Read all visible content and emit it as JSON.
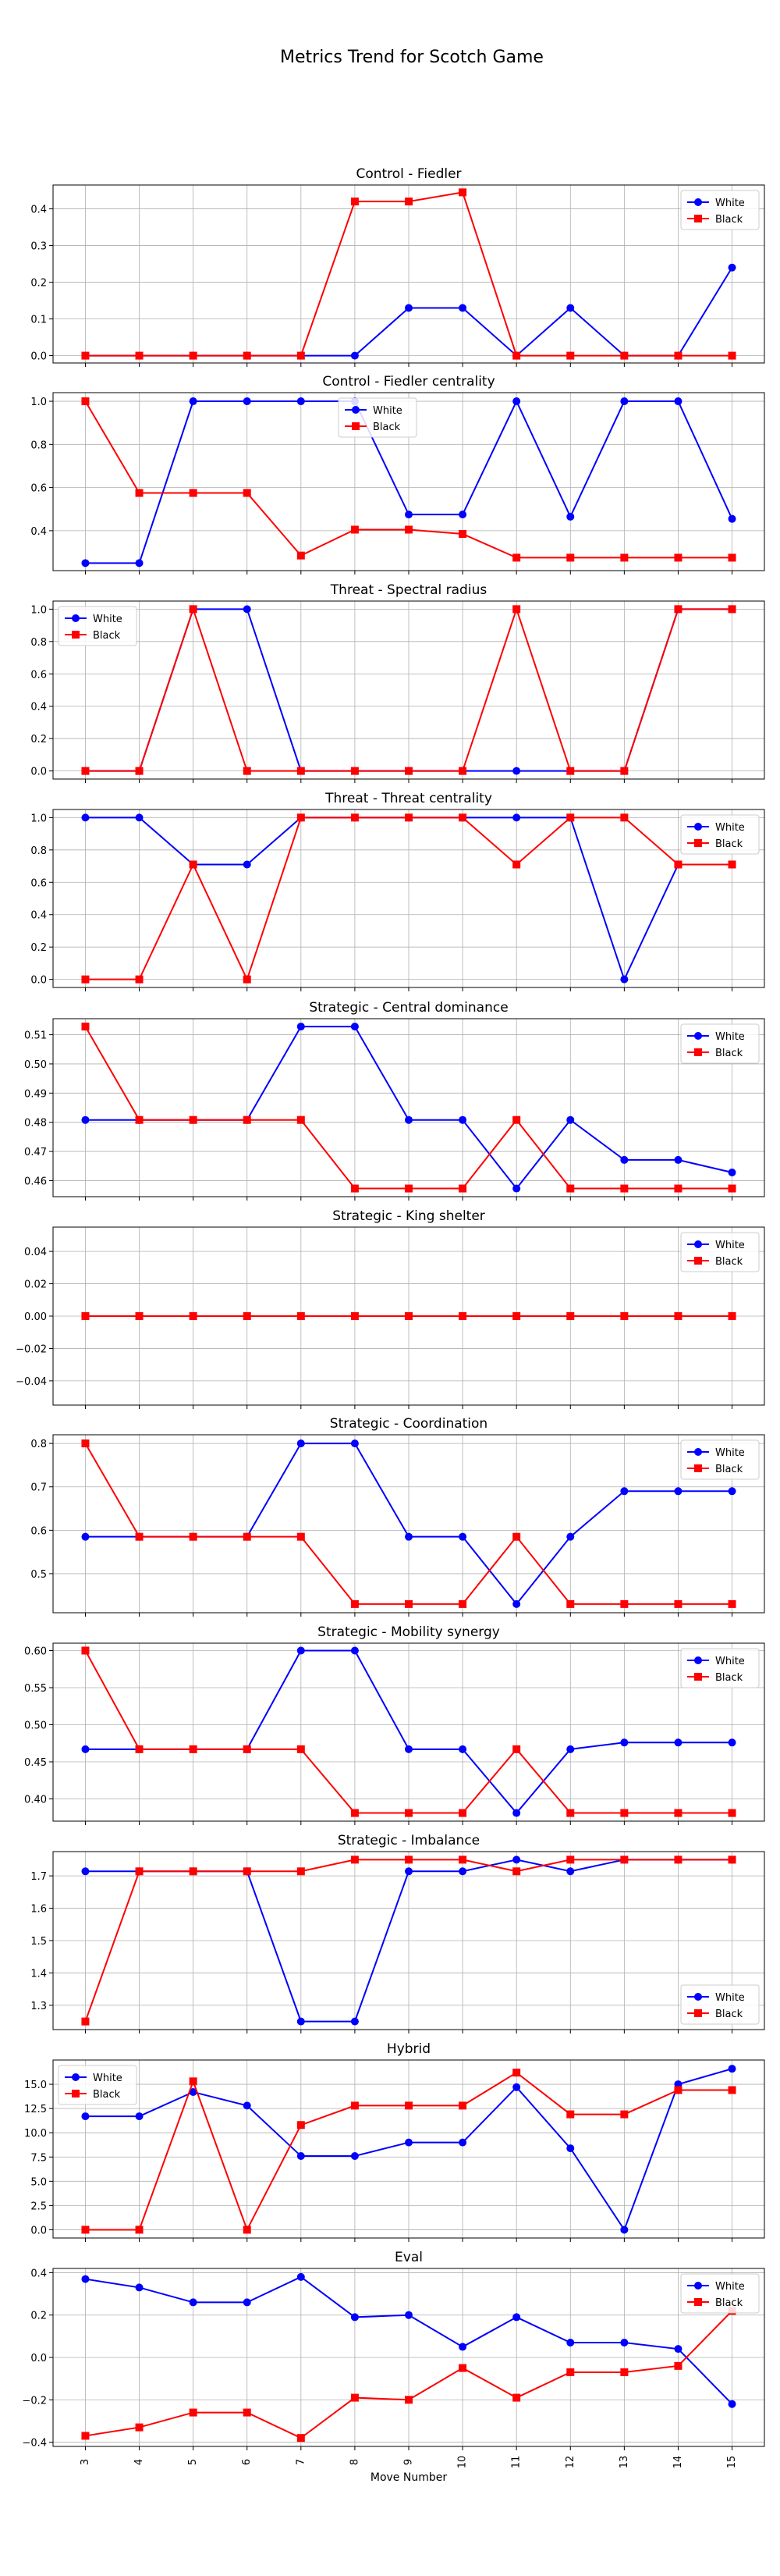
{
  "suptitle": "Metrics Trend for Scotch Game",
  "xlabel": "Move Number",
  "colors": {
    "white_series": "#0000ff",
    "black_series": "#ff0000"
  },
  "chart_data": [
    {
      "type": "line",
      "title": "Control - Fiedler",
      "x": [
        3,
        4,
        5,
        6,
        7,
        8,
        9,
        10,
        11,
        12,
        13,
        14,
        15
      ],
      "ylim": [
        -0.02,
        0.465
      ],
      "yticks": [
        0.0,
        0.1,
        0.2,
        0.3,
        0.4
      ],
      "ytick_labels": [
        "0.0",
        "0.1",
        "0.2",
        "0.3",
        "0.4"
      ],
      "legend": "upper-right",
      "grid": true,
      "series": [
        {
          "name": "White",
          "marker": "circle",
          "values": [
            0,
            0,
            0,
            0,
            0,
            0,
            0.13,
            0.13,
            0,
            0.13,
            0,
            0,
            0.24
          ]
        },
        {
          "name": "Black",
          "marker": "square",
          "values": [
            0,
            0,
            0,
            0,
            0,
            0.42,
            0.42,
            0.445,
            0,
            0,
            0,
            0,
            0
          ]
        }
      ]
    },
    {
      "type": "line",
      "title": "Control - Fiedler centrality",
      "x": [
        3,
        4,
        5,
        6,
        7,
        8,
        9,
        10,
        11,
        12,
        13,
        14,
        15
      ],
      "ylim": [
        0.215,
        1.04
      ],
      "yticks": [
        0.4,
        0.6,
        0.8,
        1.0
      ],
      "ytick_labels": [
        "0.4",
        "0.6",
        "0.8",
        "1.0"
      ],
      "legend": "upper-center",
      "grid": true,
      "series": [
        {
          "name": "White",
          "marker": "circle",
          "values": [
            0.25,
            0.25,
            1.0,
            1.0,
            1.0,
            1.0,
            0.475,
            0.475,
            1.0,
            0.465,
            1.0,
            1.0,
            0.455
          ]
        },
        {
          "name": "Black",
          "marker": "square",
          "values": [
            1.0,
            0.575,
            0.575,
            0.575,
            0.285,
            0.405,
            0.405,
            0.385,
            0.275,
            0.275,
            0.275,
            0.275,
            0.275
          ]
        }
      ]
    },
    {
      "type": "line",
      "title": "Threat - Spectral radius",
      "x": [
        3,
        4,
        5,
        6,
        7,
        8,
        9,
        10,
        11,
        12,
        13,
        14,
        15
      ],
      "ylim": [
        -0.05,
        1.05
      ],
      "yticks": [
        0.0,
        0.2,
        0.4,
        0.6,
        0.8,
        1.0
      ],
      "ytick_labels": [
        "0.0",
        "0.2",
        "0.4",
        "0.6",
        "0.8",
        "1.0"
      ],
      "legend": "upper-left",
      "grid": true,
      "series": [
        {
          "name": "White",
          "marker": "circle",
          "values": [
            0,
            0,
            1.0,
            1.0,
            0,
            0,
            0,
            0,
            0,
            0,
            0,
            1.0,
            1.0
          ]
        },
        {
          "name": "Black",
          "marker": "square",
          "values": [
            0,
            0,
            1.0,
            0,
            0,
            0,
            0,
            0,
            1.0,
            0,
            0,
            1.0,
            1.0
          ]
        }
      ]
    },
    {
      "type": "line",
      "title": "Threat - Threat centrality",
      "x": [
        3,
        4,
        5,
        6,
        7,
        8,
        9,
        10,
        11,
        12,
        13,
        14,
        15
      ],
      "ylim": [
        -0.05,
        1.05
      ],
      "yticks": [
        0.0,
        0.2,
        0.4,
        0.6,
        0.8,
        1.0
      ],
      "ytick_labels": [
        "0.0",
        "0.2",
        "0.4",
        "0.6",
        "0.8",
        "1.0"
      ],
      "legend": "upper-right",
      "grid": true,
      "series": [
        {
          "name": "White",
          "marker": "circle",
          "values": [
            1.0,
            1.0,
            0.71,
            0.71,
            1.0,
            1.0,
            1.0,
            1.0,
            1.0,
            1.0,
            0,
            0.71,
            0.71
          ]
        },
        {
          "name": "Black",
          "marker": "square",
          "values": [
            0,
            0,
            0.71,
            0,
            1.0,
            1.0,
            1.0,
            1.0,
            0.71,
            1.0,
            1.0,
            0.71,
            0.71
          ]
        }
      ]
    },
    {
      "type": "line",
      "title": "Strategic - Central dominance",
      "x": [
        3,
        4,
        5,
        6,
        7,
        8,
        9,
        10,
        11,
        12,
        13,
        14,
        15
      ],
      "ylim": [
        0.4545,
        0.5155
      ],
      "yticks": [
        0.46,
        0.47,
        0.48,
        0.49,
        0.5,
        0.51
      ],
      "ytick_labels": [
        "0.46",
        "0.47",
        "0.48",
        "0.49",
        "0.50",
        "0.51"
      ],
      "legend": "upper-right",
      "grid": true,
      "series": [
        {
          "name": "White",
          "marker": "circle",
          "values": [
            0.4808,
            0.4808,
            0.4808,
            0.4808,
            0.5128,
            0.5128,
            0.4808,
            0.4808,
            0.4573,
            0.4808,
            0.4671,
            0.4671,
            0.4628
          ]
        },
        {
          "name": "Black",
          "marker": "square",
          "values": [
            0.5128,
            0.4808,
            0.4808,
            0.4808,
            0.4808,
            0.4573,
            0.4573,
            0.4573,
            0.4808,
            0.4573,
            0.4573,
            0.4573,
            0.4573
          ]
        }
      ]
    },
    {
      "type": "line",
      "title": "Strategic - King shelter",
      "x": [
        3,
        4,
        5,
        6,
        7,
        8,
        9,
        10,
        11,
        12,
        13,
        14,
        15
      ],
      "ylim": [
        -0.055,
        0.055
      ],
      "yticks": [
        -0.04,
        -0.02,
        0.0,
        0.02,
        0.04
      ],
      "ytick_labels": [
        "−0.04",
        "−0.02",
        "0.00",
        "0.02",
        "0.04"
      ],
      "legend": "upper-right",
      "grid": true,
      "series": [
        {
          "name": "White",
          "marker": "circle",
          "values": [
            0,
            0,
            0,
            0,
            0,
            0,
            0,
            0,
            0,
            0,
            0,
            0,
            0
          ]
        },
        {
          "name": "Black",
          "marker": "square",
          "values": [
            0,
            0,
            0,
            0,
            0,
            0,
            0,
            0,
            0,
            0,
            0,
            0,
            0
          ]
        }
      ]
    },
    {
      "type": "line",
      "title": "Strategic - Coordination",
      "x": [
        3,
        4,
        5,
        6,
        7,
        8,
        9,
        10,
        11,
        12,
        13,
        14,
        15
      ],
      "ylim": [
        0.41,
        0.82
      ],
      "yticks": [
        0.5,
        0.6,
        0.7,
        0.8
      ],
      "ytick_labels": [
        "0.5",
        "0.6",
        "0.7",
        "0.8"
      ],
      "legend": "upper-right",
      "grid": true,
      "series": [
        {
          "name": "White",
          "marker": "circle",
          "values": [
            0.585,
            0.585,
            0.585,
            0.585,
            0.8,
            0.8,
            0.585,
            0.585,
            0.43,
            0.585,
            0.69,
            0.69,
            0.69
          ]
        },
        {
          "name": "Black",
          "marker": "square",
          "values": [
            0.8,
            0.585,
            0.585,
            0.585,
            0.585,
            0.43,
            0.43,
            0.43,
            0.585,
            0.43,
            0.43,
            0.43,
            0.43
          ]
        }
      ]
    },
    {
      "type": "line",
      "title": "Strategic - Mobility synergy",
      "x": [
        3,
        4,
        5,
        6,
        7,
        8,
        9,
        10,
        11,
        12,
        13,
        14,
        15
      ],
      "ylim": [
        0.37,
        0.61
      ],
      "yticks": [
        0.4,
        0.45,
        0.5,
        0.55,
        0.6
      ],
      "ytick_labels": [
        "0.40",
        "0.45",
        "0.50",
        "0.55",
        "0.60"
      ],
      "legend": "upper-right",
      "grid": true,
      "series": [
        {
          "name": "White",
          "marker": "circle",
          "values": [
            0.467,
            0.467,
            0.467,
            0.467,
            0.6,
            0.6,
            0.467,
            0.467,
            0.381,
            0.467,
            0.476,
            0.476,
            0.476
          ]
        },
        {
          "name": "Black",
          "marker": "square",
          "values": [
            0.6,
            0.467,
            0.467,
            0.467,
            0.467,
            0.381,
            0.381,
            0.381,
            0.467,
            0.381,
            0.381,
            0.381,
            0.381
          ]
        }
      ]
    },
    {
      "type": "line",
      "title": "Strategic - Imbalance",
      "x": [
        3,
        4,
        5,
        6,
        7,
        8,
        9,
        10,
        11,
        12,
        13,
        14,
        15
      ],
      "ylim": [
        1.225,
        1.775
      ],
      "yticks": [
        1.3,
        1.4,
        1.5,
        1.6,
        1.7
      ],
      "ytick_labels": [
        "1.3",
        "1.4",
        "1.5",
        "1.6",
        "1.7"
      ],
      "legend": "lower-right",
      "grid": true,
      "series": [
        {
          "name": "White",
          "marker": "circle",
          "values": [
            1.714,
            1.714,
            1.714,
            1.714,
            1.25,
            1.25,
            1.714,
            1.714,
            1.75,
            1.714,
            1.75,
            1.75,
            1.75
          ]
        },
        {
          "name": "Black",
          "marker": "square",
          "values": [
            1.25,
            1.714,
            1.714,
            1.714,
            1.714,
            1.75,
            1.75,
            1.75,
            1.714,
            1.75,
            1.75,
            1.75,
            1.75
          ]
        }
      ]
    },
    {
      "type": "line",
      "title": "Hybrid",
      "x": [
        3,
        4,
        5,
        6,
        7,
        8,
        9,
        10,
        11,
        12,
        13,
        14,
        15
      ],
      "ylim": [
        -0.85,
        17.5
      ],
      "yticks": [
        0.0,
        2.5,
        5.0,
        7.5,
        10.0,
        12.5,
        15.0
      ],
      "ytick_labels": [
        "0.0",
        "2.5",
        "5.0",
        "7.5",
        "10.0",
        "12.5",
        "15.0"
      ],
      "legend": "upper-left",
      "grid": true,
      "series": [
        {
          "name": "White",
          "marker": "circle",
          "values": [
            11.7,
            11.7,
            14.2,
            12.8,
            7.6,
            7.6,
            9.0,
            9.0,
            14.7,
            8.4,
            0,
            15.0,
            16.6
          ]
        },
        {
          "name": "Black",
          "marker": "square",
          "values": [
            0,
            0,
            15.3,
            0,
            10.8,
            12.8,
            12.8,
            12.8,
            16.2,
            11.9,
            11.9,
            14.4,
            14.4
          ]
        }
      ]
    },
    {
      "type": "line",
      "title": "Eval",
      "x": [
        3,
        4,
        5,
        6,
        7,
        8,
        9,
        10,
        11,
        12,
        13,
        14,
        15
      ],
      "ylim": [
        -0.42,
        0.42
      ],
      "yticks": [
        -0.4,
        -0.2,
        0.0,
        0.2,
        0.4
      ],
      "ytick_labels": [
        "−0.4",
        "−0.2",
        "0.0",
        "0.2",
        "0.4"
      ],
      "legend": "upper-right",
      "grid": true,
      "series": [
        {
          "name": "White",
          "marker": "circle",
          "values": [
            0.37,
            0.33,
            0.26,
            0.26,
            0.38,
            0.19,
            0.2,
            0.05,
            0.19,
            0.07,
            0.07,
            0.04,
            -0.22
          ]
        },
        {
          "name": "Black",
          "marker": "square",
          "values": [
            -0.37,
            -0.33,
            -0.26,
            -0.26,
            -0.38,
            -0.19,
            -0.2,
            -0.05,
            -0.19,
            -0.07,
            -0.07,
            -0.04,
            0.22
          ]
        }
      ]
    }
  ]
}
